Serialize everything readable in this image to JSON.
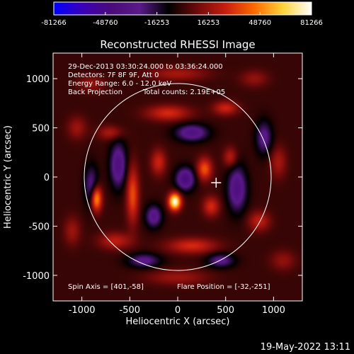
{
  "chart_data": {
    "type": "heatmap",
    "title": "Reconstructed RHESSI Image",
    "xlabel": "Heliocentric X (arcsec)",
    "ylabel": "Heliocentric Y (arcsec)",
    "xlim": [
      -1300,
      1300
    ],
    "ylim": [
      -1260,
      1260
    ],
    "x_ticks": [
      -1000,
      -500,
      0,
      500,
      1000
    ],
    "y_ticks": [
      1000,
      500,
      0,
      -500,
      -1000
    ],
    "x_tick_labels": [
      "-1000",
      "-500",
      "0",
      "500",
      "1000"
    ],
    "y_tick_labels": [
      "1000",
      "500",
      "0",
      "-500",
      "-1000"
    ],
    "colorbar": {
      "min": -81266,
      "max": 81266,
      "tick_values": [
        -81266,
        -48760,
        -16253,
        16253,
        48760,
        81266
      ],
      "tick_labels": [
        "-81266",
        "-48760",
        "-16253",
        "16253",
        "48760",
        "81266"
      ],
      "colormap": [
        "#0000ff",
        "#3a00b8",
        "#4b0b7a",
        "#5a1a8a",
        "#000000",
        "#6e0a0a",
        "#c81e10",
        "#ff6a00",
        "#ffd23a",
        "#ffffff"
      ]
    },
    "annotations": {
      "time_range": "29-Dec-2013 03:30:24.000 to 03:36:24.000",
      "detectors": "Detectors: 7F 8F 9F, Att 0",
      "energy": "Energy Range: 6.0 - 12.0 keV",
      "method": "Back Projection",
      "counts": "Total counts: 2.19E+05",
      "spin_axis": "Spin Axis = [401,-58]",
      "flare_position": "Flare Position = [-32,-251]"
    },
    "solar_limb_radius_arcsec": 975,
    "spin_axis_marker": [
      401,
      -58
    ],
    "blobs": [
      {
        "x": -30,
        "y": -250,
        "value": 81266,
        "sx": 45,
        "sy": 60
      },
      {
        "x": -850,
        "y": -220,
        "value": 60000,
        "sx": 40,
        "sy": 90
      },
      {
        "x": 280,
        "y": 80,
        "value": 40000,
        "sx": 55,
        "sy": 80
      },
      {
        "x": -470,
        "y": -180,
        "value": 38000,
        "sx": 45,
        "sy": 200
      },
      {
        "x": 350,
        "y": -300,
        "value": 30000,
        "sx": 60,
        "sy": 70
      },
      {
        "x": -200,
        "y": 150,
        "value": 28000,
        "sx": 55,
        "sy": 90
      },
      {
        "x": 550,
        "y": 200,
        "value": 25000,
        "sx": 50,
        "sy": 70
      },
      {
        "x": -100,
        "y": 650,
        "value": 30000,
        "sx": 160,
        "sy": 55
      },
      {
        "x": 500,
        "y": 700,
        "value": 28000,
        "sx": 90,
        "sy": 50
      },
      {
        "x": 150,
        "y": -700,
        "value": 30000,
        "sx": 180,
        "sy": 55
      },
      {
        "x": -650,
        "y": -650,
        "value": 25000,
        "sx": 120,
        "sy": 60
      },
      {
        "x": 850,
        "y": -450,
        "value": 25000,
        "sx": 80,
        "sy": 70
      },
      {
        "x": -700,
        "y": 450,
        "value": 22000,
        "sx": 90,
        "sy": 50
      },
      {
        "x": 1050,
        "y": 150,
        "value": 20000,
        "sx": 60,
        "sy": 110
      },
      {
        "x": -1050,
        "y": 500,
        "value": 18000,
        "sx": 70,
        "sy": 80
      },
      {
        "x": 0,
        "y": 1050,
        "value": 20000,
        "sx": 220,
        "sy": 50
      },
      {
        "x": 0,
        "y": -1020,
        "value": 18000,
        "sx": 220,
        "sy": 55
      },
      {
        "x": -1100,
        "y": -550,
        "value": 18000,
        "sx": 60,
        "sy": 100
      },
      {
        "x": 1100,
        "y": -850,
        "value": 16000,
        "sx": 90,
        "sy": 70
      },
      {
        "x": 800,
        "y": 1000,
        "value": 16000,
        "sx": 100,
        "sy": 60
      },
      {
        "x": -900,
        "y": 950,
        "value": 16000,
        "sx": 100,
        "sy": 60
      },
      {
        "x": 620,
        "y": -120,
        "value": -40000,
        "sx": 70,
        "sy": 160
      },
      {
        "x": -620,
        "y": 120,
        "value": -40000,
        "sx": 60,
        "sy": 160
      },
      {
        "x": 80,
        "y": -20,
        "value": -45000,
        "sx": 70,
        "sy": 80
      },
      {
        "x": -250,
        "y": -400,
        "value": -35000,
        "sx": 60,
        "sy": 80
      },
      {
        "x": 150,
        "y": 450,
        "value": -38000,
        "sx": 120,
        "sy": 60
      },
      {
        "x": -350,
        "y": -850,
        "value": -30000,
        "sx": 120,
        "sy": 50
      },
      {
        "x": 450,
        "y": -850,
        "value": -30000,
        "sx": 100,
        "sy": 50
      },
      {
        "x": -900,
        "y": -100,
        "value": -30000,
        "sx": 50,
        "sy": 150
      },
      {
        "x": 900,
        "y": 400,
        "value": -30000,
        "sx": 60,
        "sy": 120
      }
    ]
  },
  "footer": {
    "timestamp": "19-May-2022 13:11"
  }
}
